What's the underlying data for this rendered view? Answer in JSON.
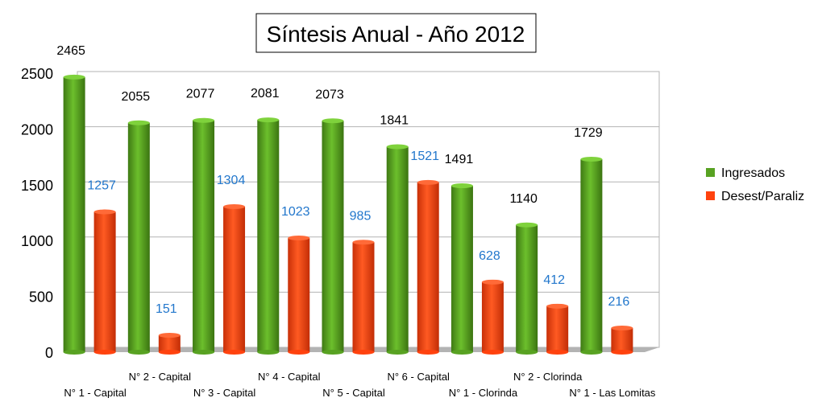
{
  "chart_data": {
    "type": "bar",
    "title": "Síntesis Anual - Año 2012",
    "xlabel": "",
    "ylabel": "",
    "ylim": [
      0,
      2500
    ],
    "yticks": [
      0,
      500,
      1000,
      1500,
      2000,
      2500
    ],
    "grid": true,
    "legend_position": "right",
    "categories": [
      "N° 1 - Capital",
      "N° 2 - Capital",
      "N° 3 - Capital",
      "N° 4 - Capital",
      "N° 5 - Capital",
      "N° 6 - Capital",
      "N° 1 - Clorinda",
      "N° 2 - Clorinda",
      "N° 1 - Las Lomitas"
    ],
    "series": [
      {
        "name": "Ingresados",
        "color": "#58a222",
        "label_color": "#000000",
        "values": [
          2465,
          2055,
          2077,
          2081,
          2073,
          1841,
          1491,
          1140,
          1729
        ]
      },
      {
        "name": "Desest/Paraliz",
        "color": "#ff420e",
        "label_color": "#2277cc",
        "values": [
          1257,
          151,
          1304,
          1023,
          985,
          1521,
          628,
          412,
          216
        ]
      }
    ]
  }
}
